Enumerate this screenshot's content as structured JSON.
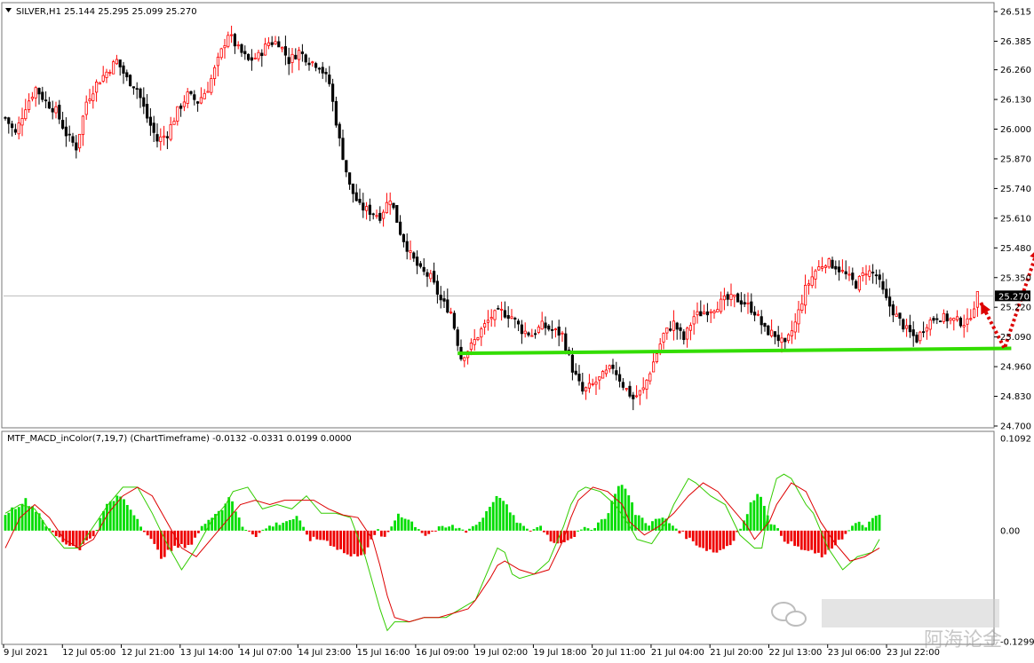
{
  "chart_data": [
    {
      "type": "candlestick",
      "symbol_line": "SILVER,H1  25.144 25.295 25.099 25.270",
      "y_range": [
        24.7,
        26.515
      ],
      "y_ticks": [
        "26.515",
        "26.385",
        "26.260",
        "26.130",
        "26.000",
        "25.870",
        "25.740",
        "25.610",
        "25.480",
        "25.350",
        "25.220",
        "25.090",
        "24.960",
        "24.830",
        "24.700"
      ],
      "current_price": "25.270",
      "bull_color": "#ff0000",
      "bear_color": "#000000",
      "close_path": [
        [
          0,
          26.05
        ],
        [
          3,
          25.98
        ],
        [
          6,
          26.1
        ],
        [
          9,
          26.18
        ],
        [
          12,
          26.12
        ],
        [
          15,
          26.08
        ],
        [
          18,
          25.98
        ],
        [
          21,
          25.92
        ],
        [
          24,
          26.12
        ],
        [
          27,
          26.2
        ],
        [
          30,
          26.25
        ],
        [
          33,
          26.3
        ],
        [
          36,
          26.22
        ],
        [
          39,
          26.18
        ],
        [
          42,
          26.05
        ],
        [
          45,
          25.95
        ],
        [
          48,
          25.98
        ],
        [
          51,
          26.08
        ],
        [
          54,
          26.15
        ],
        [
          57,
          26.12
        ],
        [
          60,
          26.18
        ],
        [
          63,
          26.3
        ],
        [
          66,
          26.42
        ],
        [
          69,
          26.35
        ],
        [
          72,
          26.3
        ],
        [
          75,
          26.32
        ],
        [
          78,
          26.38
        ],
        [
          81,
          26.38
        ],
        [
          84,
          26.3
        ],
        [
          87,
          26.34
        ],
        [
          90,
          26.3
        ],
        [
          93,
          26.28
        ],
        [
          96,
          26.2
        ],
        [
          99,
          25.95
        ],
        [
          102,
          25.75
        ],
        [
          105,
          25.66
        ],
        [
          108,
          25.64
        ],
        [
          111,
          25.62
        ],
        [
          114,
          25.7
        ],
        [
          117,
          25.55
        ],
        [
          120,
          25.45
        ],
        [
          123,
          25.38
        ],
        [
          126,
          25.35
        ],
        [
          129,
          25.25
        ],
        [
          132,
          25.2
        ],
        [
          135,
          25.0
        ],
        [
          138,
          25.05
        ],
        [
          141,
          25.12
        ],
        [
          144,
          25.18
        ],
        [
          147,
          25.2
        ],
        [
          150,
          25.18
        ],
        [
          153,
          25.12
        ],
        [
          156,
          25.1
        ],
        [
          159,
          25.14
        ],
        [
          162,
          25.12
        ],
        [
          165,
          25.1
        ],
        [
          168,
          24.95
        ],
        [
          171,
          24.85
        ],
        [
          174,
          24.88
        ],
        [
          177,
          24.92
        ],
        [
          180,
          24.96
        ],
        [
          183,
          24.88
        ],
        [
          186,
          24.82
        ],
        [
          189,
          24.86
        ],
        [
          192,
          24.98
        ],
        [
          195,
          25.1
        ],
        [
          198,
          25.15
        ],
        [
          201,
          25.08
        ],
        [
          204,
          25.18
        ],
        [
          207,
          25.2
        ],
        [
          210,
          25.22
        ],
        [
          213,
          25.25
        ],
        [
          216,
          25.26
        ],
        [
          219,
          25.24
        ],
        [
          222,
          25.2
        ],
        [
          225,
          25.12
        ],
        [
          228,
          25.1
        ],
        [
          231,
          25.05
        ],
        [
          234,
          25.15
        ],
        [
          237,
          25.3
        ],
        [
          240,
          25.38
        ],
        [
          243,
          25.42
        ],
        [
          246,
          25.4
        ],
        [
          249,
          25.36
        ],
        [
          252,
          25.32
        ],
        [
          255,
          25.38
        ],
        [
          258,
          25.36
        ],
        [
          261,
          25.25
        ],
        [
          264,
          25.18
        ],
        [
          267,
          25.12
        ],
        [
          270,
          25.08
        ],
        [
          273,
          25.15
        ],
        [
          276,
          25.18
        ],
        [
          279,
          25.17
        ],
        [
          282,
          25.16
        ],
        [
          285,
          25.15
        ],
        [
          288,
          25.27
        ]
      ],
      "support_line": {
        "color": "#33dd00",
        "from": [
          134,
          25.018
        ],
        "to": [
          298,
          25.04
        ]
      },
      "arrow": {
        "color": "#dd0000",
        "points": [
          [
            289,
            25.24
          ],
          [
            296,
            25.04
          ],
          [
            306,
            25.48
          ]
        ]
      },
      "x_labels": [
        "9 Jul 2021",
        "12 Jul 05:00",
        "12 Jul 21:00",
        "13 Jul 14:00",
        "14 Jul 07:00",
        "14 Jul 23:00",
        "15 Jul 16:00",
        "16 Jul 09:00",
        "19 Jul 02:00",
        "19 Jul 18:00",
        "20 Jul 11:00",
        "21 Jul 04:00",
        "21 Jul 20:00",
        "22 Jul 13:00",
        "23 Jul 06:00",
        "23 Jul 22:00"
      ]
    },
    {
      "type": "macd",
      "title_line": "MTF_MACD_inColor(7,19,7) (ChartTimeframe) -0.0132 -0.0331 0.0199 0.0000",
      "y_range": [
        -0.1299,
        0.1092
      ],
      "y_ticks": [
        "0.1092",
        "0.00",
        "-0.1299"
      ],
      "zero_label": "0.00",
      "pos_color": "#00dd00",
      "neg_color": "#ee0000",
      "signal_color": "#dd0000",
      "macd_line_color": "#33cc00",
      "hist_path": [
        [
          0,
          0.02
        ],
        [
          6,
          0.035
        ],
        [
          10,
          0.02
        ],
        [
          13,
          0.0
        ],
        [
          18,
          -0.015
        ],
        [
          22,
          -0.02
        ],
        [
          26,
          -0.005
        ],
        [
          30,
          0.03
        ],
        [
          34,
          0.04
        ],
        [
          38,
          0.02
        ],
        [
          42,
          -0.005
        ],
        [
          46,
          -0.03
        ],
        [
          50,
          -0.02
        ],
        [
          55,
          -0.015
        ],
        [
          60,
          0.015
        ],
        [
          64,
          0.025
        ],
        [
          66,
          0.04
        ],
        [
          70,
          0.005
        ],
        [
          74,
          -0.005
        ],
        [
          78,
          0.005
        ],
        [
          82,
          0.01
        ],
        [
          86,
          0.015
        ],
        [
          90,
          -0.01
        ],
        [
          94,
          -0.01
        ],
        [
          98,
          -0.02
        ],
        [
          102,
          -0.03
        ],
        [
          106,
          -0.025
        ],
        [
          110,
          0.0
        ],
        [
          112,
          -0.01
        ],
        [
          116,
          0.02
        ],
        [
          120,
          0.01
        ],
        [
          124,
          -0.005
        ],
        [
          128,
          0.002
        ],
        [
          132,
          0.005
        ],
        [
          136,
          0.0
        ],
        [
          140,
          0.01
        ],
        [
          144,
          0.035
        ],
        [
          146,
          0.04
        ],
        [
          150,
          0.015
        ],
        [
          154,
          0.0
        ],
        [
          158,
          0.005
        ],
        [
          162,
          -0.015
        ],
        [
          166,
          -0.01
        ],
        [
          170,
          0.0
        ],
        [
          174,
          0.005
        ],
        [
          178,
          0.02
        ],
        [
          180,
          0.045
        ],
        [
          182,
          0.055
        ],
        [
          184,
          0.04
        ],
        [
          186,
          0.02
        ],
        [
          190,
          0.008
        ],
        [
          194,
          0.015
        ],
        [
          198,
          0.003
        ],
        [
          202,
          -0.01
        ],
        [
          206,
          -0.02
        ],
        [
          210,
          -0.025
        ],
        [
          214,
          -0.015
        ],
        [
          218,
          0.01
        ],
        [
          220,
          0.03
        ],
        [
          222,
          0.045
        ],
        [
          224,
          0.03
        ],
        [
          226,
          0.01
        ],
        [
          230,
          -0.01
        ],
        [
          234,
          -0.02
        ],
        [
          238,
          -0.025
        ],
        [
          242,
          -0.03
        ],
        [
          246,
          -0.01
        ],
        [
          248,
          -0.005
        ],
        [
          250,
          0.005
        ],
        [
          252,
          0.008
        ],
        [
          254,
          0.006
        ],
        [
          258,
          0.018
        ]
      ],
      "macd_line": [
        [
          0,
          0.02
        ],
        [
          4,
          0.03
        ],
        [
          8,
          0.025
        ],
        [
          12,
          0.0
        ],
        [
          16,
          -0.02
        ],
        [
          20,
          -0.02
        ],
        [
          24,
          0.005
        ],
        [
          28,
          0.03
        ],
        [
          32,
          0.05
        ],
        [
          36,
          0.05
        ],
        [
          40,
          0.02
        ],
        [
          44,
          -0.015
        ],
        [
          48,
          -0.045
        ],
        [
          52,
          -0.02
        ],
        [
          56,
          0.01
        ],
        [
          60,
          0.03
        ],
        [
          62,
          0.045
        ],
        [
          66,
          0.05
        ],
        [
          70,
          0.025
        ],
        [
          74,
          0.03
        ],
        [
          78,
          0.025
        ],
        [
          82,
          0.04
        ],
        [
          86,
          0.02
        ],
        [
          90,
          0.02
        ],
        [
          94,
          0.015
        ],
        [
          98,
          -0.03
        ],
        [
          102,
          -0.09
        ],
        [
          104,
          -0.115
        ],
        [
          106,
          -0.105
        ],
        [
          110,
          -0.105
        ],
        [
          114,
          -0.1
        ],
        [
          118,
          -0.1
        ],
        [
          120,
          -0.1
        ],
        [
          124,
          -0.09
        ],
        [
          128,
          -0.08
        ],
        [
          132,
          -0.04
        ],
        [
          134,
          -0.02
        ],
        [
          136,
          -0.025
        ],
        [
          138,
          -0.05
        ],
        [
          140,
          -0.055
        ],
        [
          144,
          -0.05
        ],
        [
          148,
          -0.035
        ],
        [
          152,
          0.005
        ],
        [
          154,
          0.03
        ],
        [
          156,
          0.045
        ],
        [
          158,
          0.05
        ],
        [
          162,
          0.045
        ],
        [
          166,
          0.03
        ],
        [
          170,
          0.005
        ],
        [
          172,
          -0.01
        ],
        [
          176,
          -0.015
        ],
        [
          180,
          0.01
        ],
        [
          182,
          0.03
        ],
        [
          184,
          0.045
        ],
        [
          186,
          0.06
        ],
        [
          188,
          0.055
        ],
        [
          192,
          0.04
        ],
        [
          196,
          0.03
        ],
        [
          200,
          -0.005
        ],
        [
          204,
          -0.02
        ],
        [
          206,
          -0.02
        ],
        [
          208,
          0.03
        ],
        [
          210,
          0.06
        ],
        [
          212,
          0.065
        ],
        [
          214,
          0.06
        ],
        [
          218,
          0.03
        ],
        [
          220,
          0.02
        ],
        [
          224,
          -0.02
        ],
        [
          228,
          -0.045
        ],
        [
          232,
          -0.03
        ],
        [
          236,
          -0.025
        ],
        [
          238,
          -0.01
        ]
      ],
      "signal_line": [
        [
          0,
          -0.02
        ],
        [
          4,
          0.015
        ],
        [
          8,
          0.03
        ],
        [
          12,
          0.015
        ],
        [
          16,
          -0.01
        ],
        [
          20,
          -0.02
        ],
        [
          24,
          -0.01
        ],
        [
          28,
          0.02
        ],
        [
          32,
          0.04
        ],
        [
          36,
          0.05
        ],
        [
          40,
          0.04
        ],
        [
          44,
          0.01
        ],
        [
          48,
          -0.02
        ],
        [
          52,
          -0.03
        ],
        [
          56,
          -0.01
        ],
        [
          60,
          0.01
        ],
        [
          64,
          0.03
        ],
        [
          68,
          0.035
        ],
        [
          72,
          0.03
        ],
        [
          76,
          0.035
        ],
        [
          80,
          0.035
        ],
        [
          84,
          0.035
        ],
        [
          88,
          0.025
        ],
        [
          92,
          0.018
        ],
        [
          96,
          0.015
        ],
        [
          100,
          -0.01
        ],
        [
          102,
          -0.04
        ],
        [
          104,
          -0.075
        ],
        [
          106,
          -0.1
        ],
        [
          110,
          -0.105
        ],
        [
          114,
          -0.1
        ],
        [
          118,
          -0.1
        ],
        [
          122,
          -0.095
        ],
        [
          126,
          -0.09
        ],
        [
          128,
          -0.08
        ],
        [
          132,
          -0.055
        ],
        [
          134,
          -0.04
        ],
        [
          136,
          -0.035
        ],
        [
          140,
          -0.045
        ],
        [
          144,
          -0.05
        ],
        [
          148,
          -0.045
        ],
        [
          152,
          -0.01
        ],
        [
          154,
          0.015
        ],
        [
          156,
          0.035
        ],
        [
          160,
          0.05
        ],
        [
          164,
          0.045
        ],
        [
          168,
          0.03
        ],
        [
          170,
          0.01
        ],
        [
          174,
          -0.005
        ],
        [
          178,
          0.005
        ],
        [
          182,
          0.02
        ],
        [
          186,
          0.04
        ],
        [
          190,
          0.055
        ],
        [
          194,
          0.045
        ],
        [
          198,
          0.025
        ],
        [
          202,
          0.005
        ],
        [
          204,
          -0.01
        ],
        [
          208,
          0.01
        ],
        [
          210,
          0.03
        ],
        [
          214,
          0.055
        ],
        [
          218,
          0.045
        ],
        [
          222,
          0.01
        ],
        [
          226,
          -0.015
        ],
        [
          230,
          -0.035
        ],
        [
          234,
          -0.03
        ],
        [
          238,
          -0.02
        ]
      ]
    }
  ],
  "watermark": {
    "account": "阿海论金"
  }
}
